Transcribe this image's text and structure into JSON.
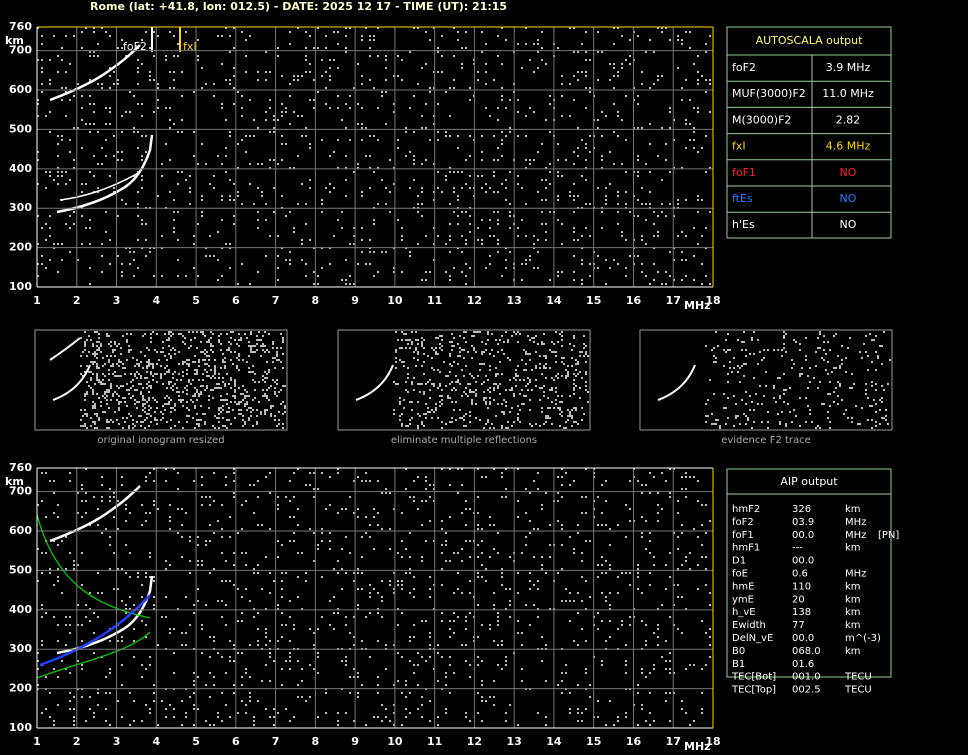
{
  "header": {
    "title": "Rome (lat: +41.8, lon: 012.5) - DATE: 2025 12 17 - TIME (UT): 21:15"
  },
  "ionogram": {
    "y_unit": "km",
    "x_unit": "MHz",
    "yticks": [
      "760",
      "700",
      "600",
      "500",
      "400",
      "300",
      "200",
      "100"
    ],
    "xticks": [
      "1",
      "2",
      "3",
      "4",
      "5",
      "6",
      "7",
      "8",
      "9",
      "10",
      "11",
      "12",
      "13",
      "14",
      "15",
      "16",
      "17",
      "18"
    ],
    "markers": [
      "foF2",
      "fxI"
    ]
  },
  "thumbnails": [
    {
      "caption": "original ionogram resized"
    },
    {
      "caption": "eliminate multiple reflections"
    },
    {
      "caption": "evidence F2 trace"
    }
  ],
  "autoscala": {
    "title": "AUTOSCALA output",
    "rows": [
      [
        "foF2",
        "3.9 MHz"
      ],
      [
        "MUF(3000)F2",
        "11.0 MHz"
      ],
      [
        "M(3000)F2",
        "2.82"
      ],
      [
        "fxI",
        "4.6 MHz"
      ],
      [
        "foF1",
        "NO"
      ],
      [
        "ftEs",
        "NO"
      ],
      [
        "h'Es",
        "NO"
      ]
    ]
  },
  "aip": {
    "title": "AIP output",
    "rows": [
      [
        "hmF2",
        "326",
        "km"
      ],
      [
        "foF2",
        "03.9",
        "MHz"
      ],
      [
        "foF1",
        "00.0",
        "MHz",
        "[PN]"
      ],
      [
        "hmF1",
        "---",
        "km"
      ],
      [
        "D1",
        "00.0"
      ],
      [
        "foE",
        "0.6",
        "MHz"
      ],
      [
        "hmE",
        "110",
        "km"
      ],
      [
        "ymE",
        "20",
        "km"
      ],
      [
        "h_vE",
        "138",
        "km"
      ],
      [
        "Ewidth",
        "77",
        "km"
      ],
      [
        "DelN_vE",
        "00.0",
        "m^(-3)"
      ],
      [
        "B0",
        "068.0",
        "km"
      ],
      [
        "B1",
        "01.6"
      ],
      [
        "TEC[Bot]",
        "001.0",
        "TECU"
      ],
      [
        "TEC[Top]",
        "002.5",
        "TECU"
      ]
    ]
  }
}
